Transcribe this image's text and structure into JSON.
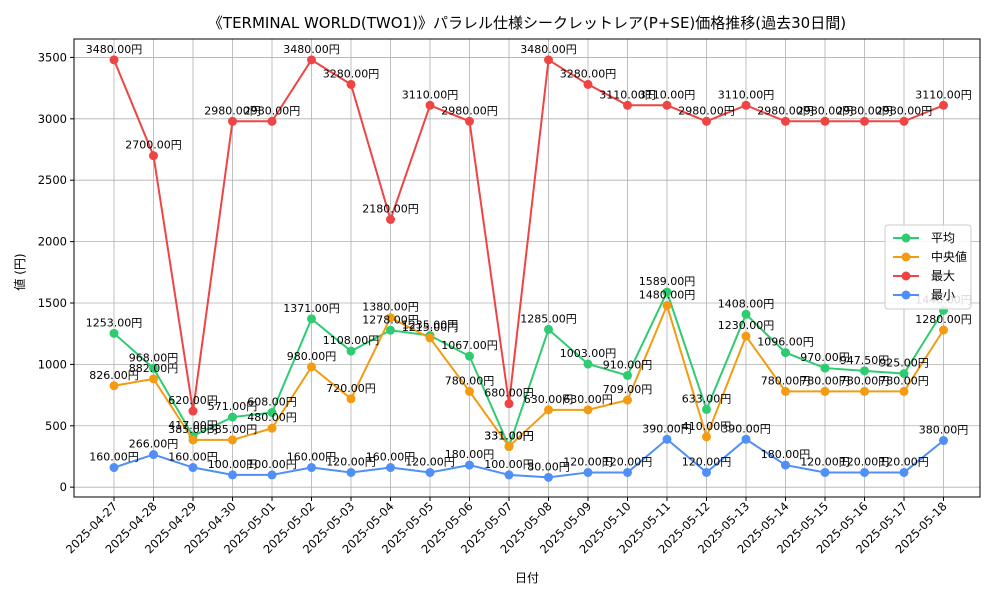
{
  "chart_data": {
    "type": "line",
    "title": "《TERMINAL WORLD(TWO1)》パラレル仕様シークレットレア(P+SE)価格推移(過去30日間)",
    "xlabel": "日付",
    "ylabel": "値 (円)",
    "ylim": [
      -80,
      3650
    ],
    "yticks": [
      0,
      500,
      1000,
      1500,
      2000,
      2500,
      3000,
      3500
    ],
    "grid": true,
    "legend_position": "center-right",
    "label_suffix": "円",
    "categories": [
      "2025-04-27",
      "2025-04-28",
      "2025-04-29",
      "2025-04-30",
      "2025-05-01",
      "2025-05-02",
      "2025-05-03",
      "2025-05-04",
      "2025-05-05",
      "2025-05-06",
      "2025-05-07",
      "2025-05-08",
      "2025-05-09",
      "2025-05-10",
      "2025-05-11",
      "2025-05-12",
      "2025-05-13",
      "2025-05-14",
      "2025-05-15",
      "2025-05-16",
      "2025-05-17",
      "2025-05-18"
    ],
    "series": [
      {
        "name": "平均",
        "color": "#2ecc71",
        "values": [
          1253,
          968,
          417,
          571,
          608,
          1371,
          1108,
          1278,
          1235,
          1067,
          331,
          1285,
          1003,
          910,
          1589,
          633,
          1408,
          1096,
          970,
          947.5,
          925,
          1440
        ],
        "labels": [
          "1253.00円",
          "968.00円",
          "417.00円",
          "571.00円",
          "608.00円",
          "1371.00円",
          "1108.00円",
          "1278.00円",
          "1235.00円",
          "1067.00円",
          "331.00円",
          "1285.00円",
          "1003.00円",
          "910.00円",
          "1589.00円",
          "633.00円",
          "1408.00円",
          "1096.00円",
          "970.00円",
          "947.50円",
          "925.00円",
          "1440.00円"
        ]
      },
      {
        "name": "中央値",
        "color": "#f39c12",
        "values": [
          826,
          882,
          385,
          385,
          480,
          980,
          720,
          1380,
          1215,
          780,
          331,
          630,
          630,
          709,
          1480,
          410,
          1230,
          780,
          780,
          780,
          780,
          1280
        ],
        "labels": [
          "826.00円",
          "882.00円",
          "385.00円",
          "385.00円",
          "480.00円",
          "980.00円",
          "720.00円",
          "1380.00円",
          "1215.00円",
          "780.00円",
          "331.00円",
          "630.00円",
          "630.00円",
          "709.00円",
          "1480.00円",
          "410.00円",
          "1230.00円",
          "780.00円",
          "780.00円",
          "780.00円",
          "780.00円",
          "1280.00円"
        ]
      },
      {
        "name": "最大",
        "color": "#ef4444",
        "values": [
          3480,
          2700,
          620,
          2980,
          2980,
          3480,
          3280,
          2180,
          3110,
          2980,
          680,
          3480,
          3280,
          3110,
          3110,
          2980,
          3110,
          2980,
          2980,
          2980,
          2980,
          3110
        ],
        "labels": [
          "3480.00円",
          "2700.00円",
          "620.00円",
          "2980.00円",
          "2980.00円",
          "3480.00円",
          "3280.00円",
          "2180.00円",
          "3110.00円",
          "2980.00円",
          "680.00円",
          "3480.00円",
          "3280.00円",
          "3110.00円",
          "3110.00円",
          "2980.00円",
          "3110.00円",
          "2980.00円",
          "2980.00円",
          "2980.00円",
          "2980.00円",
          "3110.00円"
        ]
      },
      {
        "name": "最小",
        "color": "#4f8ff7",
        "values": [
          160,
          266,
          160,
          100,
          100,
          160,
          120,
          160,
          120,
          180,
          100,
          80,
          120,
          120,
          390,
          120,
          390,
          180,
          120,
          120,
          120,
          380
        ],
        "labels": [
          "160.00円",
          "266.00円",
          "160.00円",
          "100.00円",
          "100.00円",
          "160.00円",
          "120.00円",
          "160.00円",
          "120.00円",
          "180.00円",
          "100.00円",
          "80.00円",
          "120.00円",
          "120.00円",
          "390.00円",
          "120.00円",
          "390.00円",
          "180.00円",
          "120.00円",
          "120.00円",
          "120.00円",
          "380.00円"
        ]
      }
    ]
  }
}
